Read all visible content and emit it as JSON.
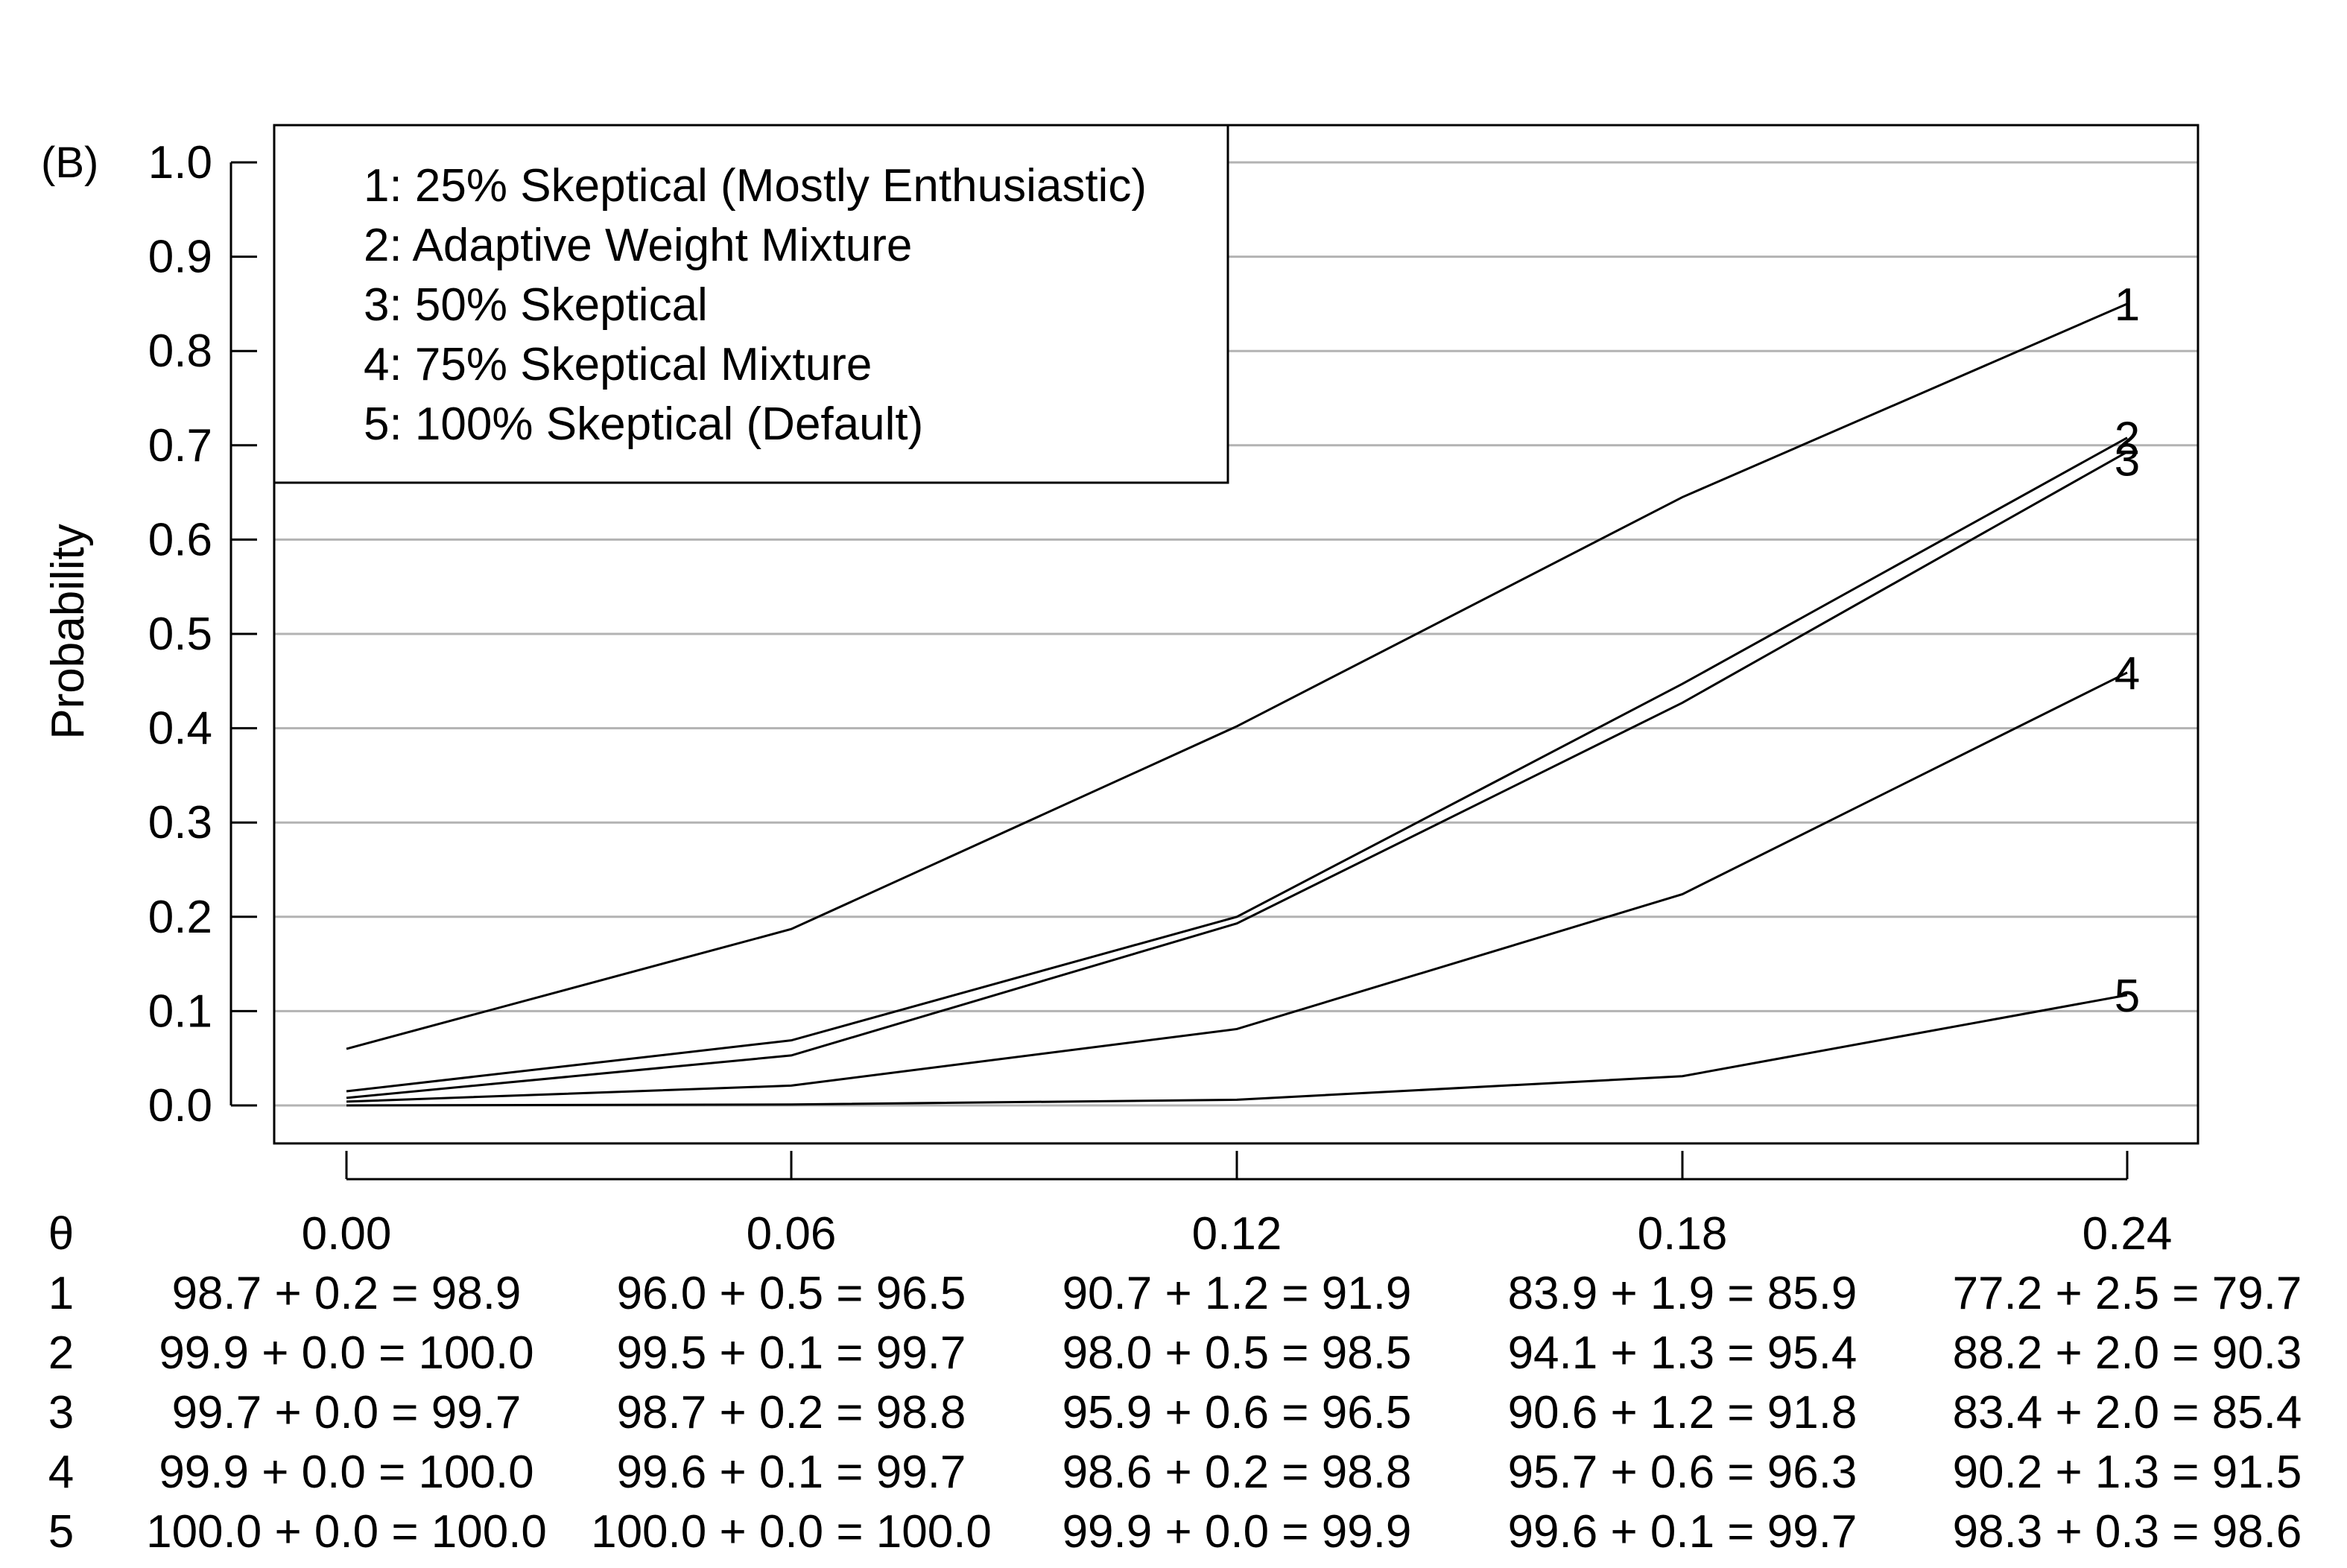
{
  "panel_label": "(B)",
  "chart_data": {
    "type": "line",
    "ylabel": "Probability",
    "xlabel": "",
    "x": [
      0.0,
      0.06,
      0.12,
      0.18,
      0.24
    ],
    "x_tick_labels": [
      "0.00",
      "0.06",
      "0.12",
      "0.18",
      "0.24"
    ],
    "ylim": [
      0.0,
      1.0
    ],
    "y_ticks": [
      0.0,
      0.1,
      0.2,
      0.3,
      0.4,
      0.5,
      0.6,
      0.7,
      0.8,
      0.9,
      1.0
    ],
    "y_tick_labels": [
      "0.0",
      "0.1",
      "0.2",
      "0.3",
      "0.4",
      "0.5",
      "0.6",
      "0.7",
      "0.8",
      "0.9",
      "1.0"
    ],
    "grid": "horizontal",
    "legend_position": "top-left",
    "legend_entries": [
      "1: 25% Skeptical (Mostly Enthusiastic)",
      "2: Adaptive Weight Mixture",
      "3: 50% Skeptical",
      "4: 75% Skeptical Mixture",
      "5: 100% Skeptical (Default)"
    ],
    "series": [
      {
        "label": "1",
        "values": [
          0.06,
          0.187,
          0.402,
          0.645,
          0.85
        ]
      },
      {
        "label": "2",
        "values": [
          0.015,
          0.069,
          0.2,
          0.447,
          0.708
        ]
      },
      {
        "label": "3",
        "values": [
          0.008,
          0.053,
          0.193,
          0.427,
          0.693
        ]
      },
      {
        "label": "4",
        "values": [
          0.004,
          0.021,
          0.081,
          0.224,
          0.459
        ]
      },
      {
        "label": "5",
        "values": [
          0.0,
          0.001,
          0.006,
          0.031,
          0.117
        ]
      }
    ],
    "table": {
      "header_symbol": "θ",
      "rows": [
        {
          "label": "1",
          "cells": [
            "98.7 + 0.2 = 98.9",
            "96.0 + 0.5 = 96.5",
            "90.7 + 1.2 = 91.9",
            "83.9 + 1.9 = 85.9",
            "77.2 + 2.5 = 79.7"
          ]
        },
        {
          "label": "2",
          "cells": [
            "99.9 + 0.0 = 100.0",
            "99.5 + 0.1 = 99.7",
            "98.0 + 0.5 = 98.5",
            "94.1 + 1.3 = 95.4",
            "88.2 + 2.0 = 90.3"
          ]
        },
        {
          "label": "3",
          "cells": [
            "99.7 + 0.0 = 99.7",
            "98.7 + 0.2 = 98.8",
            "95.9 + 0.6 = 96.5",
            "90.6 + 1.2 = 91.8",
            "83.4 + 2.0 = 85.4"
          ]
        },
        {
          "label": "4",
          "cells": [
            "99.9 + 0.0 = 100.0",
            "99.6 + 0.1 = 99.7",
            "98.6 + 0.2 = 98.8",
            "95.7 + 0.6 = 96.3",
            "90.2 + 1.3 = 91.5"
          ]
        },
        {
          "label": "5",
          "cells": [
            "100.0 + 0.0 = 100.0",
            "100.0 + 0.0 = 100.0",
            "99.9 + 0.0 = 99.9",
            "99.6 + 0.1 = 99.7",
            "98.3 + 0.3 = 98.6"
          ]
        }
      ]
    }
  }
}
